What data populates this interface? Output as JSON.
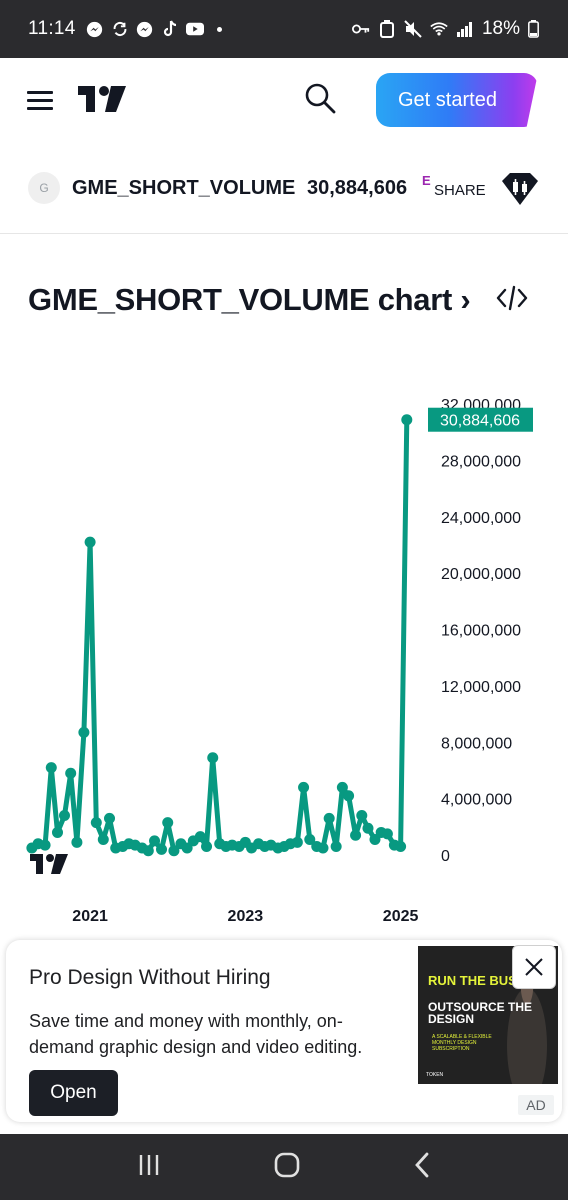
{
  "status_bar": {
    "time": "11:14",
    "battery": "18%",
    "icons": [
      "messenger-icon",
      "sync-icon",
      "messenger-icon",
      "tiktok-icon",
      "youtube-icon",
      "key-icon",
      "battery-saver-icon",
      "mute-icon",
      "wifi-icon",
      "signal-icon"
    ]
  },
  "nav": {
    "get_started_label": "Get started",
    "logo": "tradingview-logo"
  },
  "symbol": {
    "avatar_letter": "G",
    "name": "GME_SHORT_VOLUME",
    "value": "30,884,606",
    "superscript": "E",
    "currency": "SHARE"
  },
  "chart_title": "GME_SHORT_VOLUME chart",
  "chart_title_arrow": "›",
  "colors": {
    "series": "#089981",
    "accent_gradient_start": "#2aa5f4",
    "accent_gradient_end": "#c33bea",
    "badge_purple": "#9c27b0"
  },
  "chart_data": {
    "type": "line",
    "title": "",
    "xlabel": "",
    "ylabel": "",
    "ylim": [
      0,
      32000000
    ],
    "ytick_labels": [
      "32,000,000",
      "28,000,000",
      "24,000,000",
      "20,000,000",
      "16,000,000",
      "12,000,000",
      "8,000,000",
      "4,000,000",
      "0"
    ],
    "yticks": [
      32000000,
      28000000,
      24000000,
      20000000,
      16000000,
      12000000,
      8000000,
      4000000,
      0
    ],
    "xtick_labels": [
      "2021",
      "2023",
      "2025"
    ],
    "xticks": [
      2021.0,
      2023.0,
      2025.0
    ],
    "xlim": [
      2020.2,
      2025.25
    ],
    "last_value_label": "30,884,606",
    "series": [
      {
        "x": [
          2020.25,
          2020.33,
          2020.42,
          2020.5,
          2020.58,
          2020.67,
          2020.75,
          2020.83,
          2020.92,
          2021.0,
          2021.08,
          2021.17,
          2021.25,
          2021.33,
          2021.42,
          2021.5,
          2021.58,
          2021.67,
          2021.75,
          2021.83,
          2021.92,
          2022.0,
          2022.08,
          2022.17,
          2022.25,
          2022.33,
          2022.42,
          2022.5,
          2022.58,
          2022.67,
          2022.75,
          2022.83,
          2022.92,
          2023.0,
          2023.08,
          2023.17,
          2023.25,
          2023.33,
          2023.42,
          2023.5,
          2023.58,
          2023.67,
          2023.75,
          2023.83,
          2023.92,
          2024.0,
          2024.08,
          2024.17,
          2024.25,
          2024.33,
          2024.42,
          2024.5,
          2024.58,
          2024.67,
          2024.75,
          2024.83,
          2024.92,
          2025.0,
          2025.08
        ],
        "values": [
          500000,
          800000,
          700000,
          6200000,
          1600000,
          2800000,
          5800000,
          900000,
          8700000,
          22200000,
          2300000,
          1100000,
          2600000,
          500000,
          600000,
          800000,
          700000,
          500000,
          300000,
          1000000,
          400000,
          2300000,
          300000,
          800000,
          500000,
          1000000,
          1300000,
          600000,
          6900000,
          800000,
          600000,
          700000,
          600000,
          900000,
          500000,
          800000,
          600000,
          700000,
          500000,
          600000,
          800000,
          900000,
          4800000,
          1100000,
          600000,
          500000,
          2600000,
          600000,
          4800000,
          4200000,
          1400000,
          2800000,
          1900000,
          1100000,
          1600000,
          1500000,
          700000,
          600000,
          30884606
        ]
      }
    ]
  },
  "ad": {
    "title": "Pro Design Without Hiring",
    "body": "Save time and money with monthly, on-demand graphic design and video editing.",
    "cta": "Open",
    "badge": "AD",
    "image_line1": "RUN THE BUSINESS",
    "image_line2": "OUTSOURCE THE DESIGN",
    "image_line3": "A SCALABLE & FLEXIBLE MONTHLY DESIGN SUBSCRIPTION",
    "image_brand": "TOKEN"
  }
}
